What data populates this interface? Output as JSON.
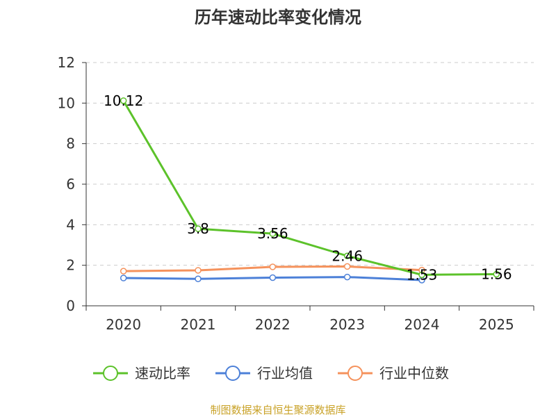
{
  "chart_data": {
    "type": "line",
    "title": "历年速动比率变化情况",
    "categories": [
      "2020",
      "2021",
      "2022",
      "2023",
      "2024",
      "2025"
    ],
    "ylim": [
      0,
      12
    ],
    "yticks": [
      0,
      2,
      4,
      6,
      8,
      10,
      12
    ],
    "grid": true,
    "legend_position": "bottom",
    "series": [
      {
        "name": "速动比率",
        "color": "#5cc22a",
        "values": [
          10.12,
          3.8,
          3.56,
          2.46,
          1.53,
          1.56
        ],
        "labels": [
          "10.12",
          "3.8",
          "3.56",
          "2.46",
          "1.53",
          "1.56"
        ]
      },
      {
        "name": "行业均值",
        "color": "#4c80d8",
        "values": [
          1.37,
          1.33,
          1.39,
          1.42,
          1.27,
          null
        ]
      },
      {
        "name": "行业中位数",
        "color": "#f5925c",
        "values": [
          1.71,
          1.75,
          1.92,
          1.94,
          1.76,
          null
        ]
      }
    ]
  },
  "source": "制图数据来自恒生聚源数据库",
  "colors": {
    "axis": "#333333",
    "grid": "#cccccc",
    "source": "#c9a227"
  }
}
